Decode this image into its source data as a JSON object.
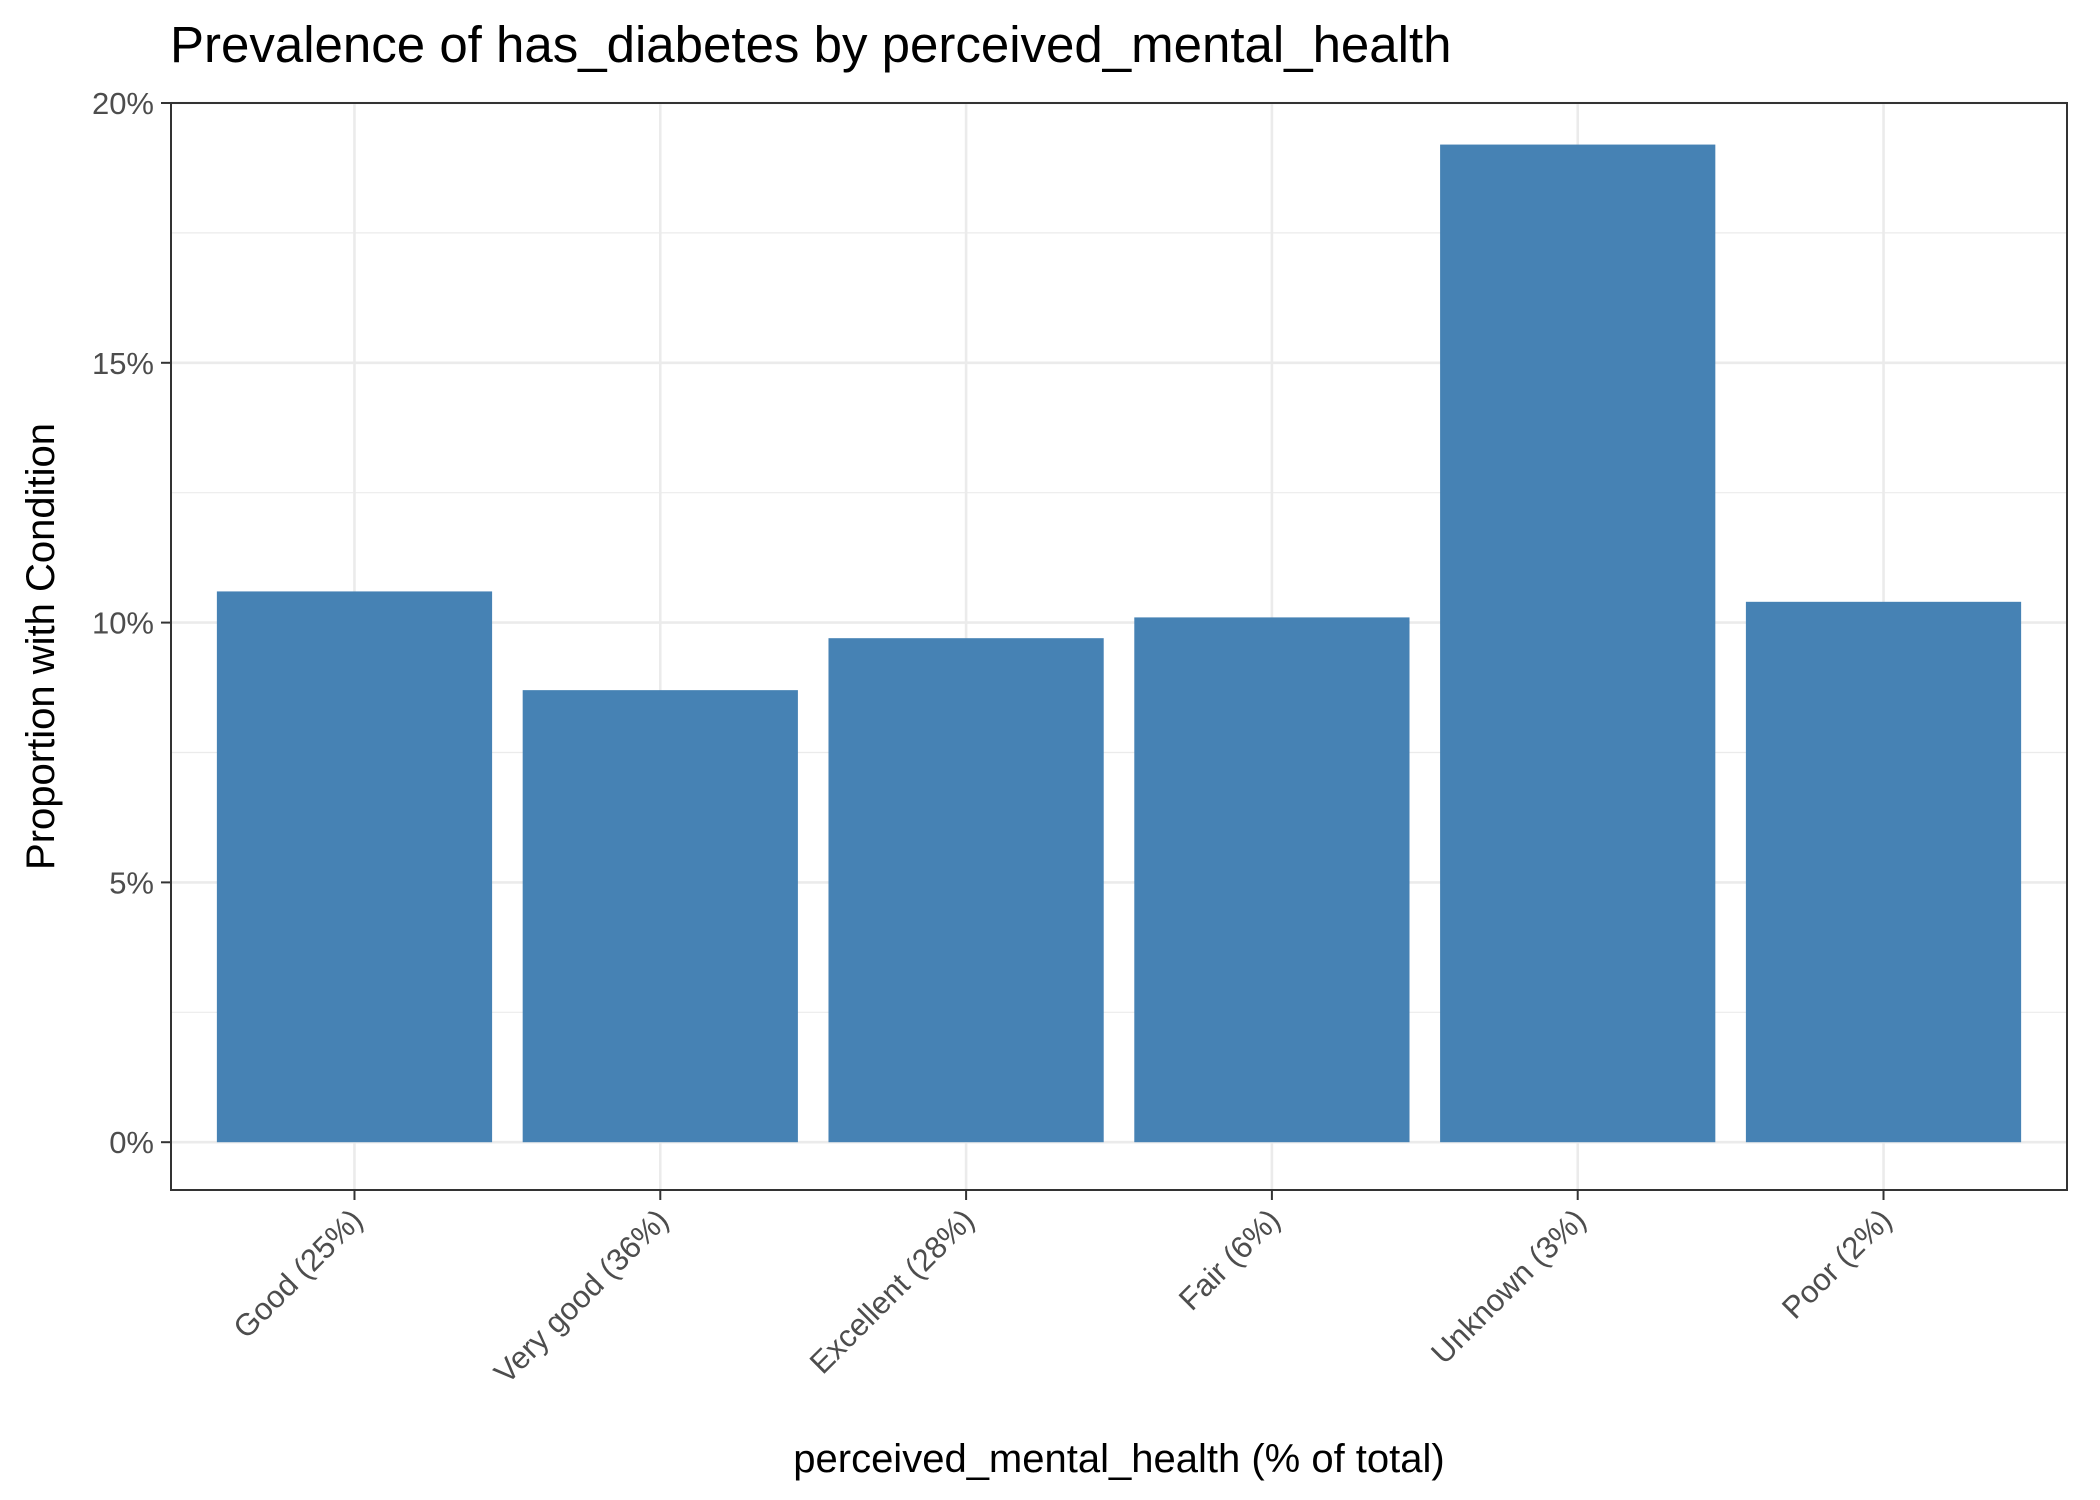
{
  "chart_data": {
    "type": "bar",
    "title": "Prevalence of has_diabetes by perceived_mental_health",
    "xlabel": "perceived_mental_health (% of total)",
    "ylabel": "Proportion with Condition",
    "categories": [
      "Good (25%)",
      "Very good (36%)",
      "Excellent (28%)",
      "Fair (6%)",
      "Unknown (3%)",
      "Poor (2%)"
    ],
    "values": [
      0.106,
      0.087,
      0.097,
      0.101,
      0.192,
      0.104
    ],
    "ylim": [
      -0.0092,
      0.2
    ],
    "yticks": [
      0,
      0.05,
      0.1,
      0.15,
      0.2
    ],
    "ytick_labels": [
      "0%",
      "5%",
      "10%",
      "15%",
      "20%"
    ],
    "bar_color": "#4682B4",
    "grid": true,
    "legend": "none"
  }
}
